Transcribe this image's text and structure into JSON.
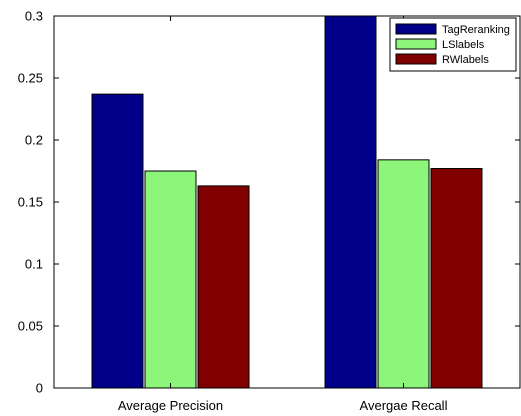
{
  "chart_data": {
    "type": "bar",
    "title": "",
    "xlabel": "",
    "ylabel": "",
    "categories": [
      "Average Precision",
      "Avergae Recall"
    ],
    "series": [
      {
        "name": "TagReranking",
        "color": "#00008B",
        "values": [
          0.237,
          0.3
        ]
      },
      {
        "name": "LSlabels",
        "color": "#8CF57A",
        "values": [
          0.175,
          0.184
        ]
      },
      {
        "name": "RWlabels",
        "color": "#800000",
        "values": [
          0.163,
          0.177
        ]
      }
    ],
    "ylim": [
      0,
      0.3
    ],
    "yticks": [
      "0",
      "0.05",
      "0.1",
      "0.15",
      "0.2",
      "0.25",
      "0.3"
    ],
    "grid": false,
    "legend_position": "top-right"
  }
}
